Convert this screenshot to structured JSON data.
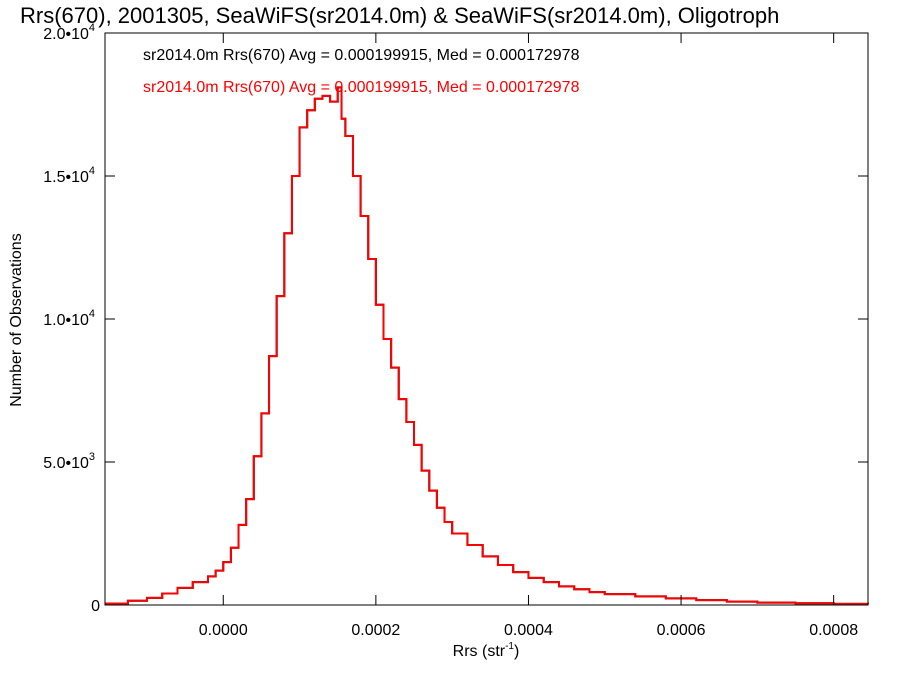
{
  "chart_data": {
    "type": "histogram",
    "title": "Rrs(670), 2001305, SeaWiFS(sr2014.0m) & SeaWiFS(sr2014.0m), Oligotroph",
    "xlabel_main": "Rrs (str",
    "xlabel_sup": "-1",
    "xlabel_close": ")",
    "ylabel": "Number of Observations",
    "xlim": [
      -0.000155,
      0.000845
    ],
    "ylim": [
      0,
      20000
    ],
    "x_ticks": [
      {
        "value": 0.0,
        "label": "0.0000"
      },
      {
        "value": 0.0002,
        "label": "0.0002"
      },
      {
        "value": 0.0004,
        "label": "0.0004"
      },
      {
        "value": 0.0006,
        "label": "0.0006"
      },
      {
        "value": 0.0008,
        "label": "0.0008"
      }
    ],
    "y_ticks": [
      {
        "value": 0,
        "base": "0",
        "exp": ""
      },
      {
        "value": 5000,
        "base": "5.0•10",
        "exp": "3"
      },
      {
        "value": 10000,
        "base": "1.0•10",
        "exp": "4"
      },
      {
        "value": 15000,
        "base": "1.5•10",
        "exp": "4"
      },
      {
        "value": 20000,
        "base": "2.0•10",
        "exp": "4"
      }
    ],
    "annotations": [
      {
        "text": "sr2014.0m Rrs(670) Avg = 0.000199915, Med = 0.000172978",
        "color": "#000000"
      },
      {
        "text": "sr2014.0m Rrs(670) Avg = 0.000199915, Med = 0.000172978",
        "color": "#ff0000"
      }
    ],
    "series": [
      {
        "color": "#000000",
        "role": "underlying"
      },
      {
        "color": "#ff0000",
        "role": "overlay"
      }
    ],
    "bins": {
      "x": [
        -0.000155,
        -0.000125,
        -0.0001,
        -8e-05,
        -6e-05,
        -4e-05,
        -2e-05,
        -1e-05,
        0.0,
        1e-05,
        2e-05,
        3e-05,
        4e-05,
        5e-05,
        6e-05,
        7e-05,
        8e-05,
        9e-05,
        0.0001,
        0.00011,
        0.00012,
        0.00013,
        0.00014,
        0.00015,
        0.000155,
        0.00016,
        0.00017,
        0.00018,
        0.00019,
        0.0002,
        0.00021,
        0.00022,
        0.00023,
        0.00024,
        0.00025,
        0.00026,
        0.00027,
        0.00028,
        0.00029,
        0.0003,
        0.00032,
        0.00034,
        0.00036,
        0.00038,
        0.0004,
        0.00042,
        0.00044,
        0.00046,
        0.00048,
        0.0005,
        0.00054,
        0.00058,
        0.00062,
        0.00066,
        0.0007,
        0.00075,
        0.0008,
        0.000845
      ],
      "y": [
        50,
        150,
        250,
        400,
        600,
        800,
        1000,
        1200,
        1500,
        2000,
        2800,
        3700,
        5200,
        6700,
        8700,
        10800,
        13000,
        15000,
        16700,
        17300,
        17700,
        17800,
        17600,
        18100,
        17000,
        16400,
        15000,
        13600,
        12100,
        10500,
        9300,
        8300,
        7200,
        6400,
        5600,
        4700,
        4000,
        3400,
        2900,
        2500,
        2100,
        1700,
        1400,
        1150,
        950,
        800,
        650,
        550,
        450,
        380,
        300,
        230,
        170,
        120,
        85,
        60,
        40,
        30
      ]
    }
  }
}
